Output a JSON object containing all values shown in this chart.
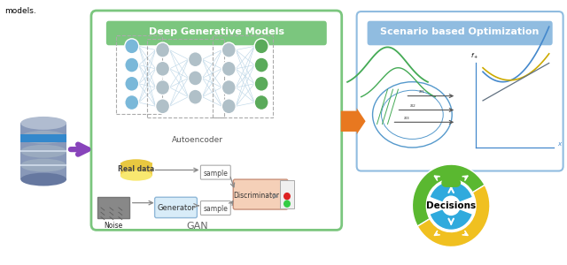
{
  "bg_color": "#ffffff",
  "dgm_box_color": "#7bc67e",
  "dgm_title": "Deep Generative Models",
  "scenario_box_color": "#90bce0",
  "scenario_title": "Scenario based Optimization",
  "decisions_text": "Decisions",
  "gan_label": "GAN",
  "autoencoder_label": "Autoencoder",
  "noise_label": "Noise",
  "sample_label": "sample",
  "real_data_label": "Real data",
  "generator_label": "Generator",
  "discriminator_label": "Discriminator",
  "models_text": "models.",
  "node_blue": "#7ab8d9",
  "node_gray": "#b0c0c8",
  "node_green": "#5aaa5a",
  "conn_color": "#c0d8e8",
  "purple_arrow": "#8844bb",
  "orange_arrow": "#e87820",
  "green_ring": "#5ab830",
  "yellow_ring": "#f0c020",
  "blue_ring": "#30aadd"
}
